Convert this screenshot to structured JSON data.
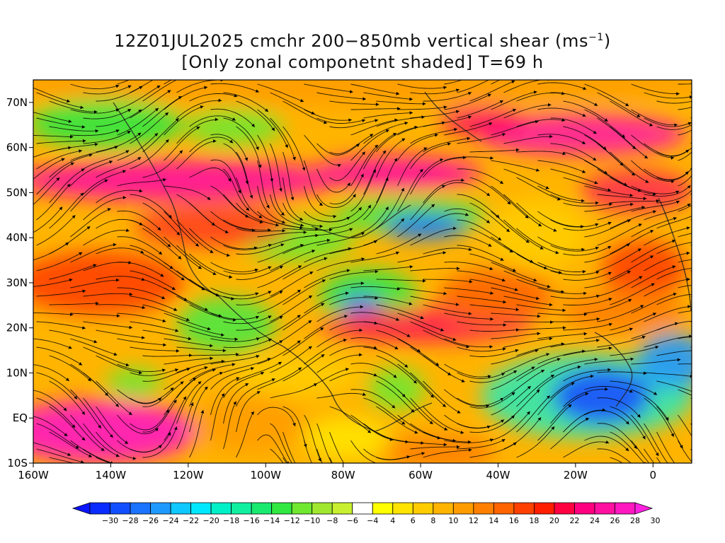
{
  "title_line1": "12Z01JUL2025 cmchr 200−850mb vertical shear (ms",
  "title_unit_exp": "−1",
  "title_line1_end": ")",
  "title_line2": "[Only zonal componetnt shaded] T=69 h",
  "lat_ticks": [
    {
      "label": "70N",
      "lat": 70
    },
    {
      "label": "60N",
      "lat": 60
    },
    {
      "label": "50N",
      "lat": 50
    },
    {
      "label": "40N",
      "lat": 40
    },
    {
      "label": "30N",
      "lat": 30
    },
    {
      "label": "20N",
      "lat": 20
    },
    {
      "label": "10N",
      "lat": 10
    },
    {
      "label": "EQ",
      "lat": 0
    },
    {
      "label": "10S",
      "lat": -10
    }
  ],
  "lon_ticks": [
    {
      "label": "160W",
      "lon": -160
    },
    {
      "label": "140W",
      "lon": -140
    },
    {
      "label": "120W",
      "lon": -120
    },
    {
      "label": "100W",
      "lon": -100
    },
    {
      "label": "80W",
      "lon": -80
    },
    {
      "label": "60W",
      "lon": -60
    },
    {
      "label": "40W",
      "lon": -40
    },
    {
      "label": "20W",
      "lon": -20
    },
    {
      "label": "0",
      "lon": 0
    }
  ],
  "lon_range": [
    -160,
    10
  ],
  "lat_range": [
    -10,
    75
  ],
  "colorbar": {
    "labels": [
      "−30",
      "−28",
      "−26",
      "−24",
      "−22",
      "−20",
      "−18",
      "−16",
      "−14",
      "−12",
      "−10",
      "−8",
      "−6",
      "−4",
      "4",
      "6",
      "8",
      "10",
      "12",
      "14",
      "16",
      "18",
      "20",
      "22",
      "24",
      "26",
      "28",
      "30"
    ],
    "colors": [
      "#0a14ff",
      "#0a2cff",
      "#1250ff",
      "#1a74ff",
      "#1e9aff",
      "#0ec8ff",
      "#00e8ff",
      "#00f0c8",
      "#10f0a0",
      "#18ea70",
      "#30e840",
      "#70e830",
      "#a0e830",
      "#c8f030",
      "#ffffff",
      "#ffff00",
      "#ffe400",
      "#ffcc00",
      "#ffb400",
      "#ff9c00",
      "#ff8000",
      "#ff6400",
      "#ff4000",
      "#ff1e00",
      "#ff0040",
      "#ff0080",
      "#ff10a0",
      "#ff18c0",
      "#ff20e0"
    ]
  }
}
